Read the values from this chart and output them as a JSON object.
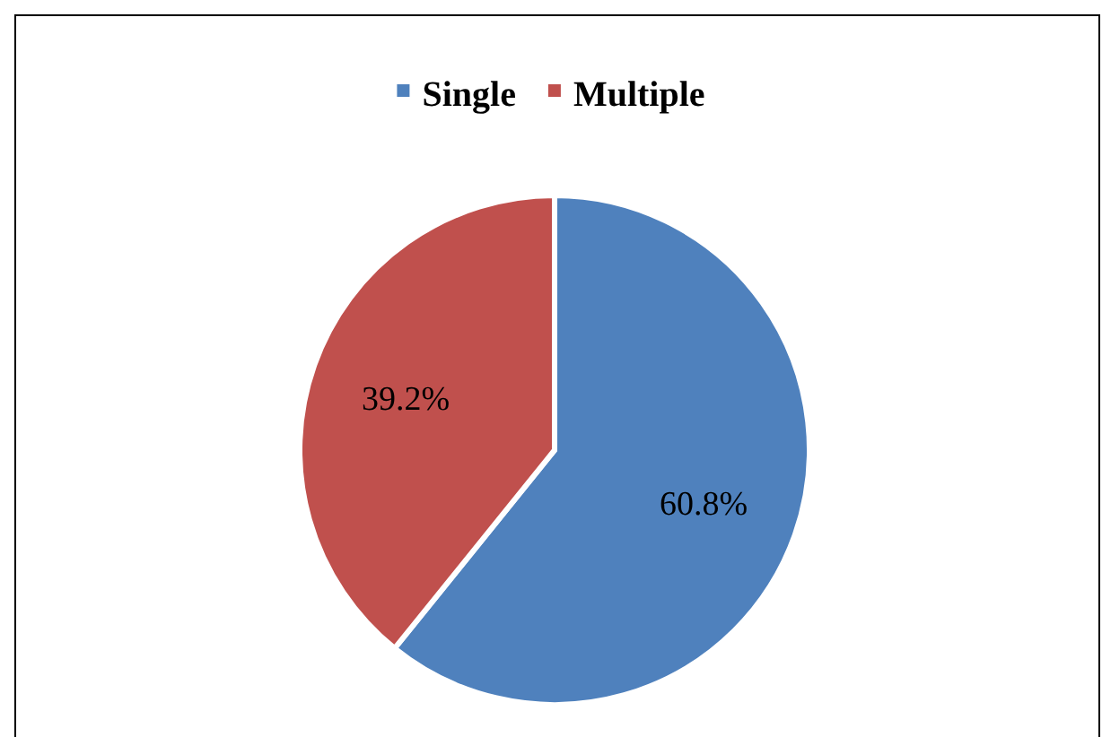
{
  "chart_data": {
    "type": "pie",
    "categories": [
      "Single",
      "Multiple"
    ],
    "values": [
      60.8,
      39.2
    ],
    "colors": [
      "#4f81bd",
      "#c0504d"
    ],
    "value_labels": [
      "60.8%",
      "39.2%"
    ],
    "legend": "top"
  }
}
